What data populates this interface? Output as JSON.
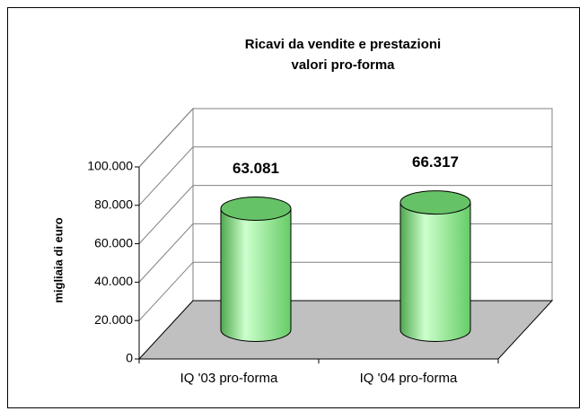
{
  "chart_data": {
    "type": "bar3d-cylinder",
    "title": "Ricavi da vendite e prestazioni",
    "subtitle": "valori pro-forma",
    "y_label": "migliaia di euro",
    "categories": [
      "IQ '03 pro-forma",
      "IQ '04 pro-forma"
    ],
    "values": [
      63081,
      66317
    ],
    "value_labels": [
      "63.081",
      "66.317"
    ],
    "color": "#99ff99",
    "top_color": "#66c266",
    "floor_color": "#c0c0c0",
    "ylim": [
      0,
      100000
    ],
    "yticks": [
      0,
      {
        "value": 20000,
        "label": "20.000"
      },
      {
        "value": 40000,
        "label": "40.000"
      },
      {
        "value": 60000,
        "label": "60.000"
      },
      {
        "value": 80000,
        "label": "80.000"
      },
      {
        "value": 100000,
        "label": "100.000"
      }
    ],
    "grid": true
  }
}
